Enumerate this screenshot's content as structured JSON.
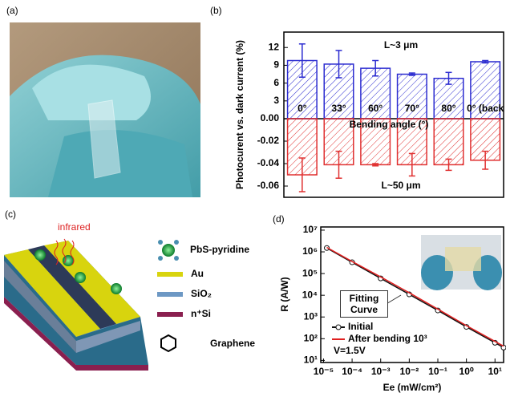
{
  "panel_labels": [
    "(a)",
    "(b)",
    "(c)",
    "(d)"
  ],
  "schematic": {
    "infrared": "infrared",
    "molecule": "PbS-pyridine",
    "layers": [
      "Au",
      "SiO₂",
      "n⁺Si"
    ],
    "graphene": "Graphene"
  },
  "chart_data": [
    {
      "type": "bar",
      "ylabel": "Photocurent vs. dark current (%)",
      "xlabel": "Bending angle (°)",
      "categories": [
        "0°",
        "33°",
        "60°",
        "70°",
        "80°",
        "0° (back"
      ],
      "series": [
        {
          "name": "L~3 μm",
          "color": "#2b2bd0",
          "values": [
            9.8,
            9.2,
            8.5,
            7.5,
            6.8,
            9.6
          ],
          "errors": [
            2.8,
            2.3,
            1.3,
            0.2,
            1.0,
            0.2
          ]
        },
        {
          "name": "L~50 μm",
          "color": "#e03030",
          "axis": "y2",
          "values": [
            -0.05,
            -0.041,
            -0.041,
            -0.041,
            -0.041,
            -0.037
          ],
          "errors": [
            0.015,
            0.012,
            0.001,
            0.01,
            0.005,
            0.008
          ]
        }
      ],
      "ylim": [
        0,
        14.6
      ],
      "yticks": [
        3,
        6,
        9,
        12
      ],
      "y2lim": [
        -0.07,
        0
      ],
      "y2ticks": [
        {
          "value": 0,
          "label": "0.00"
        },
        {
          "value": -0.02,
          "label": "-0.02"
        },
        {
          "value": -0.04,
          "label": "-0.04"
        },
        {
          "value": -0.06,
          "label": "-0.06"
        }
      ]
    },
    {
      "type": "line",
      "xlabel": "Ee (mW/cm²)",
      "ylabel": "R (A/W)",
      "xscale": "log",
      "yscale": "log",
      "x": [
        1.3e-05,
        0.0001,
        0.001,
        0.01,
        0.1,
        1,
        10,
        20
      ],
      "series": [
        {
          "name": "Initial",
          "color": "#111111",
          "marker": "circle",
          "values": [
            1500000,
            330000,
            60000,
            11000,
            2000,
            350,
            65,
            39
          ]
        },
        {
          "name": "After bending 10³",
          "color": "#e02020",
          "values": [
            1600000,
            360000,
            70000,
            13000,
            2300,
            400,
            75,
            45
          ]
        }
      ],
      "xlim": [
        8e-06,
        20
      ],
      "ylim": [
        8,
        14000000
      ],
      "xticks": [
        {
          "value": 1e-05,
          "label": "10⁻⁵"
        },
        {
          "value": 0.0001,
          "label": "10⁻⁴"
        },
        {
          "value": 0.001,
          "label": "10⁻³"
        },
        {
          "value": 0.01,
          "label": "10⁻²"
        },
        {
          "value": 0.1,
          "label": "10⁻¹"
        },
        {
          "value": 1,
          "label": "10⁰"
        },
        {
          "value": 10,
          "label": "10¹"
        }
      ],
      "yticks": [
        {
          "value": 10,
          "label": "10¹"
        },
        {
          "value": 100,
          "label": "10²"
        },
        {
          "value": 1000,
          "label": "10³"
        },
        {
          "value": 10000,
          "label": "10⁴"
        },
        {
          "value": 100000,
          "label": "10⁵"
        },
        {
          "value": 1000000,
          "label": "10⁶"
        },
        {
          "value": 10000000,
          "label": "10⁷"
        }
      ],
      "legend": "lower left",
      "annotations": [
        "Fitting Curve",
        "V=1.5V"
      ]
    }
  ]
}
